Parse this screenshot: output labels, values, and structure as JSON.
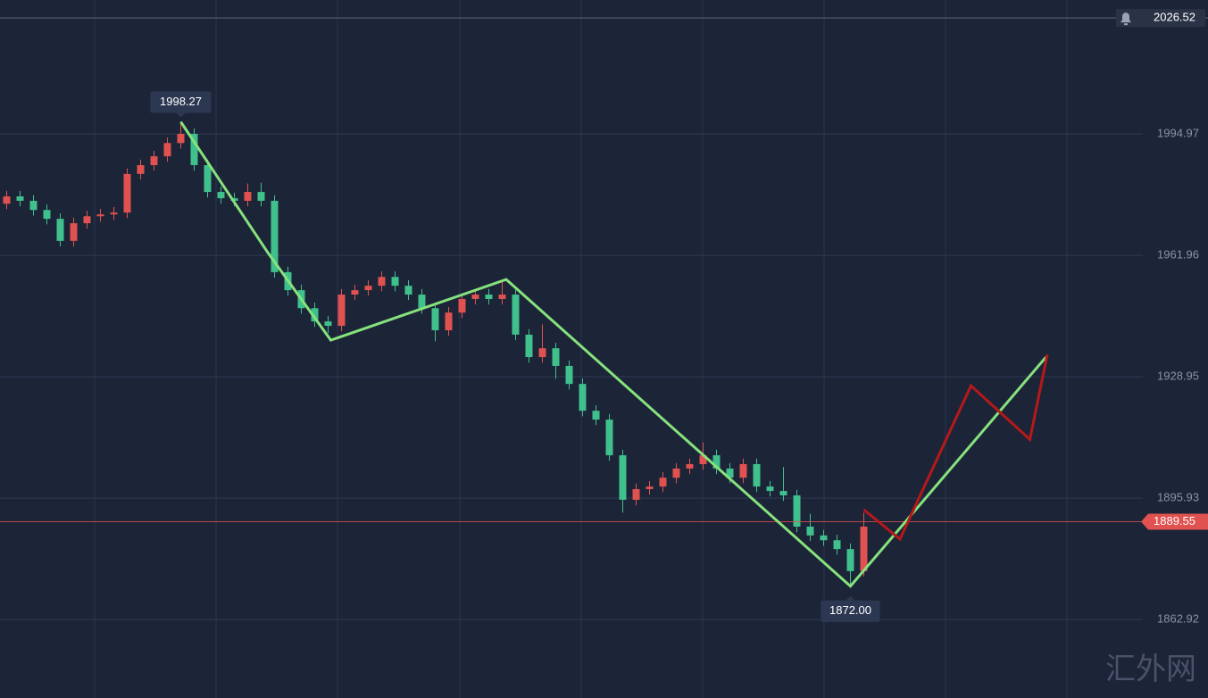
{
  "chart_data": {
    "type": "candlestick",
    "open": [
      1976.0,
      1978.0,
      1976.8,
      1974.3,
      1971.9,
      1965.9,
      1970.7,
      1972.6,
      1973.1,
      1973.6,
      1984.1,
      1986.5,
      1988.9,
      1992.5,
      1995.0,
      1986.5,
      1979.2,
      1977.5,
      1976.8,
      1979.2,
      1976.8,
      1957.4,
      1952.5,
      1947.6,
      1944.0,
      1942.8,
      1951.3,
      1952.5,
      1953.7,
      1956.1,
      1953.7,
      1951.3,
      1947.6,
      1941.6,
      1946.4,
      1950.1,
      1951.3,
      1950.1,
      1951.3,
      1940.4,
      1934.3,
      1936.7,
      1931.9,
      1927.0,
      1919.7,
      1917.3,
      1907.6,
      1895.5,
      1898.4,
      1899.1,
      1901.5,
      1904.0,
      1905.2,
      1907.6,
      1904.0,
      1901.5,
      1905.2,
      1899.1,
      1897.9,
      1896.7,
      1888.2,
      1885.8,
      1884.5,
      1882.1,
      1876.1
    ],
    "high": [
      1979.5,
      1979.5,
      1978.3,
      1975.8,
      1973.4,
      1972.2,
      1974.1,
      1974.6,
      1975.1,
      1985.6,
      1988.0,
      1990.4,
      1994.0,
      1998.27,
      1996.5,
      1988.0,
      1980.7,
      1979.0,
      1981.5,
      1981.7,
      1978.3,
      1958.9,
      1954.0,
      1949.1,
      1945.5,
      1952.8,
      1954.0,
      1955.2,
      1957.6,
      1957.6,
      1955.2,
      1952.8,
      1949.1,
      1947.9,
      1951.6,
      1952.8,
      1952.8,
      1954.8,
      1952.8,
      1941.9,
      1943.2,
      1938.2,
      1933.4,
      1928.5,
      1921.2,
      1918.8,
      1909.1,
      1899.9,
      1900.6,
      1903.0,
      1905.5,
      1906.7,
      1911.1,
      1909.1,
      1905.5,
      1906.7,
      1906.7,
      1900.6,
      1904.4,
      1898.2,
      1891.7,
      1887.3,
      1886.0,
      1883.6,
      1892.0
    ],
    "low": [
      1974.5,
      1975.3,
      1972.8,
      1970.4,
      1964.4,
      1964.4,
      1969.2,
      1971.1,
      1971.6,
      1972.1,
      1982.6,
      1985.0,
      1987.4,
      1991.0,
      1985.0,
      1977.7,
      1976.0,
      1975.3,
      1975.3,
      1975.3,
      1955.9,
      1951.0,
      1946.1,
      1942.5,
      1940.8,
      1941.3,
      1949.8,
      1951.0,
      1952.2,
      1952.2,
      1949.8,
      1946.1,
      1938.6,
      1940.1,
      1944.9,
      1948.6,
      1948.6,
      1948.6,
      1938.9,
      1932.8,
      1932.8,
      1928.4,
      1925.5,
      1918.2,
      1915.8,
      1906.1,
      1892.0,
      1894.0,
      1896.9,
      1897.6,
      1900.0,
      1902.5,
      1903.7,
      1902.5,
      1900.0,
      1900.0,
      1897.6,
      1896.4,
      1895.2,
      1886.7,
      1884.3,
      1883.0,
      1880.6,
      1872.0,
      1874.6
    ],
    "close": [
      1978.0,
      1976.8,
      1974.3,
      1971.9,
      1965.9,
      1970.7,
      1972.6,
      1973.1,
      1973.6,
      1984.1,
      1986.5,
      1988.9,
      1992.5,
      1995.0,
      1986.5,
      1979.2,
      1977.5,
      1976.8,
      1979.2,
      1976.8,
      1957.4,
      1952.5,
      1947.6,
      1944.0,
      1942.8,
      1951.3,
      1952.5,
      1953.7,
      1956.1,
      1953.7,
      1951.3,
      1947.6,
      1941.6,
      1946.4,
      1950.1,
      1951.3,
      1950.1,
      1951.3,
      1940.4,
      1934.3,
      1936.7,
      1931.9,
      1927.0,
      1919.7,
      1917.3,
      1907.6,
      1895.5,
      1898.4,
      1899.1,
      1901.5,
      1904.0,
      1905.2,
      1907.6,
      1904.0,
      1901.5,
      1905.2,
      1899.1,
      1897.9,
      1896.7,
      1888.2,
      1885.8,
      1884.5,
      1882.1,
      1876.1,
      1888.2
    ],
    "up_color": "#e0524f",
    "down_color": "#3fc08d",
    "xlim": [
      -0.5,
      84.833
    ],
    "ylim": [
      1841.6,
      2031.4
    ],
    "yticks": [
      1994.97,
      1961.96,
      1928.95,
      1895.93,
      1862.92
    ],
    "grid": true,
    "current_price": 1889.55,
    "current_color": "#e0524f",
    "top_price": 2026.52,
    "peak_label": "1998.27",
    "trough_label": {
      "value": 1872.0,
      "label": "1872.00"
    },
    "lines": [
      {
        "color": "#86e27c",
        "x": [
          13,
          19.5,
          24.2,
          37.3,
          63,
          77.6
        ],
        "y": [
          1998.27,
          1962.7,
          1938.9,
          1955.4,
          1872.0,
          1934.3
        ]
      },
      {
        "color": "#b5191a",
        "x": [
          64,
          66.7,
          72,
          76.4,
          77.7
        ],
        "y": [
          1892.8,
          1884.8,
          1926.5,
          1911.9,
          1935.0
        ]
      }
    ],
    "watermark": "汇外网"
  }
}
